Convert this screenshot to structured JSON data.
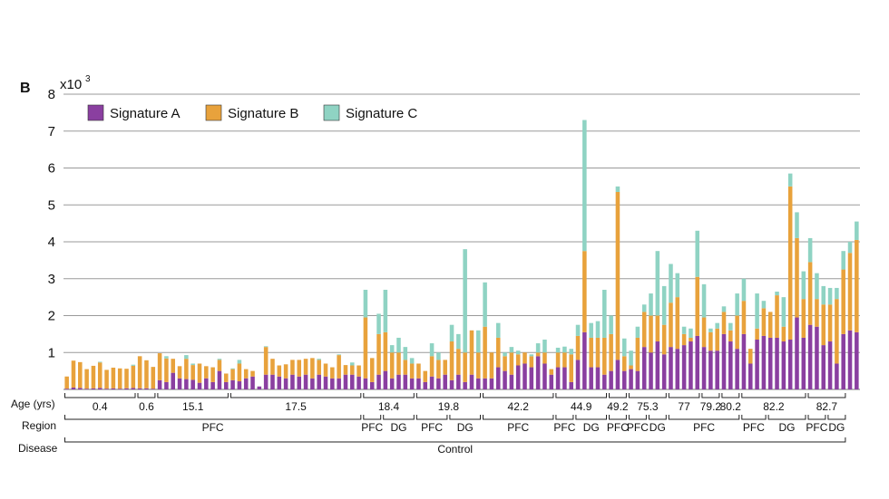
{
  "chart_data": {
    "type": "bar",
    "stacked": true,
    "panel_label": "B",
    "scale_label": "x10",
    "scale_exponent": "3",
    "ylim": [
      0,
      8
    ],
    "yticks": [
      1,
      2,
      3,
      4,
      5,
      6,
      7,
      8
    ],
    "grid": true,
    "legend_position": "top-left",
    "series": [
      {
        "name": "Signature A",
        "color": "#8a3fa0"
      },
      {
        "name": "Signature B",
        "color": "#e8a23c"
      },
      {
        "name": "Signature C",
        "color": "#8fd3c3"
      }
    ],
    "bars": [
      [
        0.02,
        0.33,
        0
      ],
      [
        0.05,
        0.73,
        0
      ],
      [
        0.04,
        0.7,
        0
      ],
      [
        0.02,
        0.53,
        0
      ],
      [
        0.03,
        0.61,
        0
      ],
      [
        0.04,
        0.69,
        0.02
      ],
      [
        0.02,
        0.51,
        0
      ],
      [
        0.03,
        0.56,
        0
      ],
      [
        0.02,
        0.55,
        0
      ],
      [
        0.03,
        0.53,
        0
      ],
      [
        0.04,
        0.6,
        0.03
      ],
      [
        0.03,
        0.87,
        0
      ],
      [
        0.03,
        0.76,
        0
      ],
      [
        0.02,
        0.59,
        0
      ],
      [
        0.25,
        0.73,
        0
      ],
      [
        0.2,
        0.64,
        0.06
      ],
      [
        0.45,
        0.38,
        0
      ],
      [
        0.3,
        0.33,
        0
      ],
      [
        0.28,
        0.55,
        0.1
      ],
      [
        0.26,
        0.4,
        0.04
      ],
      [
        0.18,
        0.52,
        0
      ],
      [
        0.3,
        0.33,
        0
      ],
      [
        0.2,
        0.4,
        0
      ],
      [
        0.5,
        0.3,
        0.03
      ],
      [
        0.2,
        0.23,
        0
      ],
      [
        0.25,
        0.3,
        0.02
      ],
      [
        0.22,
        0.48,
        0.1
      ],
      [
        0.3,
        0.25,
        0
      ],
      [
        0.35,
        0.15,
        0
      ],
      [
        0.08,
        0,
        0
      ],
      [
        0.4,
        0.75,
        0.02
      ],
      [
        0.4,
        0.43,
        0
      ],
      [
        0.35,
        0.3,
        0
      ],
      [
        0.3,
        0.38,
        0
      ],
      [
        0.4,
        0.4,
        0
      ],
      [
        0.35,
        0.45,
        0
      ],
      [
        0.4,
        0.43,
        0
      ],
      [
        0.3,
        0.55,
        0
      ],
      [
        0.4,
        0.4,
        0.03
      ],
      [
        0.35,
        0.35,
        0
      ],
      [
        0.3,
        0.3,
        0
      ],
      [
        0.3,
        0.63,
        0.02
      ],
      [
        0.4,
        0.26,
        0
      ],
      [
        0.4,
        0.25,
        0.08
      ],
      [
        0.35,
        0.3,
        0
      ],
      [
        0.3,
        1.65,
        0.75
      ],
      [
        0.2,
        0.65,
        0
      ],
      [
        0.4,
        1.1,
        0.55
      ],
      [
        0.5,
        1.05,
        1.15
      ],
      [
        0.3,
        0.7,
        0.2
      ],
      [
        0.4,
        0.6,
        0.4
      ],
      [
        0.4,
        0.4,
        0.35
      ],
      [
        0.3,
        0.4,
        0.15
      ],
      [
        0.3,
        0.4,
        0
      ],
      [
        0.2,
        0.3,
        0
      ],
      [
        0.35,
        0.55,
        0.35
      ],
      [
        0.3,
        0.5,
        0.2
      ],
      [
        0.4,
        0.4,
        0
      ],
      [
        0.25,
        1.05,
        0.45
      ],
      [
        0.4,
        0.7,
        0.4
      ],
      [
        0.2,
        0.8,
        2.8
      ],
      [
        0.4,
        1.2,
        0
      ],
      [
        0.3,
        0.7,
        0.6
      ],
      [
        0.3,
        1.4,
        1.2
      ],
      [
        0.3,
        0.7,
        0
      ],
      [
        0.6,
        0.8,
        0.4
      ],
      [
        0.5,
        0.4,
        0.1
      ],
      [
        0.4,
        0.6,
        0.15
      ],
      [
        0.65,
        0.3,
        0.1
      ],
      [
        0.7,
        0.3,
        0
      ],
      [
        0.6,
        0.3,
        0.05
      ],
      [
        0.9,
        0.1,
        0.25
      ],
      [
        0.7,
        0.3,
        0.35
      ],
      [
        0.4,
        0.15,
        0
      ],
      [
        0.6,
        0.4,
        0.13
      ],
      [
        0.6,
        0.4,
        0.16
      ],
      [
        0.2,
        0.75,
        0.15
      ],
      [
        0.8,
        0.65,
        0.3
      ],
      [
        1.55,
        2.2,
        3.55
      ],
      [
        0.6,
        0.8,
        0.4
      ],
      [
        0.6,
        0.8,
        0.45
      ],
      [
        0.4,
        1.0,
        1.3
      ],
      [
        0.5,
        1.0,
        0.5
      ],
      [
        0.8,
        4.55,
        0.15
      ],
      [
        0.5,
        0.4,
        0.48
      ],
      [
        0.55,
        0.1,
        0.4
      ],
      [
        0.5,
        0.9,
        0.3
      ],
      [
        1.15,
        0.95,
        0.2
      ],
      [
        1.0,
        1.0,
        0.6
      ],
      [
        1.3,
        0.7,
        1.75
      ],
      [
        0.95,
        0.8,
        1.05
      ],
      [
        1.15,
        1.2,
        1.05
      ],
      [
        1.1,
        1.4,
        0.65
      ],
      [
        1.2,
        0.3,
        0.2
      ],
      [
        1.3,
        0.1,
        0.25
      ],
      [
        1.45,
        1.6,
        1.25
      ],
      [
        1.15,
        0.8,
        0.9
      ],
      [
        1.05,
        0.5,
        0.1
      ],
      [
        1.05,
        0.6,
        0.15
      ],
      [
        1.5,
        0.6,
        0.15
      ],
      [
        1.3,
        0.3,
        0.2
      ],
      [
        1.1,
        0.9,
        0.6
      ],
      [
        1.5,
        0.9,
        0.6
      ],
      [
        0.7,
        0.4,
        0
      ],
      [
        1.35,
        0.3,
        0.95
      ],
      [
        1.45,
        0.75,
        0.2
      ],
      [
        1.4,
        0.7,
        0
      ],
      [
        1.4,
        1.15,
        0.1
      ],
      [
        1.3,
        0.4,
        0.8
      ],
      [
        1.35,
        4.15,
        0.35
      ],
      [
        1.95,
        2.15,
        0.7
      ],
      [
        1.4,
        1.05,
        0.75
      ],
      [
        1.75,
        1.7,
        0.65
      ],
      [
        1.7,
        0.75,
        0.7
      ],
      [
        1.2,
        1.1,
        0.5
      ],
      [
        1.3,
        1.0,
        0.45
      ],
      [
        0.7,
        1.75,
        0.3
      ],
      [
        1.5,
        1.75,
        0.5
      ],
      [
        1.6,
        2.1,
        0.3
      ],
      [
        1.55,
        2.5,
        0.5
      ]
    ],
    "age_label": "Age (yrs)",
    "region_label": "Region",
    "disease_label": "Disease",
    "age_groups": [
      {
        "label": "0.4",
        "start": 0,
        "end": 10
      },
      {
        "label": "0.6",
        "start": 11,
        "end": 13
      },
      {
        "label": "15.1",
        "start": 14,
        "end": 24
      },
      {
        "label": "17.5",
        "start": 25,
        "end": 44
      },
      {
        "label": "18.4",
        "start": 45,
        "end": 52
      },
      {
        "label": "19.8",
        "start": 53,
        "end": 62
      },
      {
        "label": "42.2",
        "start": 63,
        "end": 73
      },
      {
        "label": "44.9",
        "start": 74,
        "end": 81
      },
      {
        "label": "49.2",
        "start": 82,
        "end": 84
      },
      {
        "label": "75.3",
        "start": 85,
        "end": 90
      },
      {
        "label": "77",
        "start": 91,
        "end": 95
      },
      {
        "label": "79.2",
        "start": 96,
        "end": 98
      },
      {
        "label": "80.2",
        "start": 99,
        "end": 101
      },
      {
        "label": "82.2",
        "start": 102,
        "end": 111
      },
      {
        "label": "82.7",
        "start": 112,
        "end": 117
      }
    ],
    "region_groups": [
      {
        "label": "PFC",
        "start": 0,
        "end": 44
      },
      {
        "label": "PFC",
        "start": 45,
        "end": 47
      },
      {
        "label": "DG",
        "start": 48,
        "end": 52
      },
      {
        "label": "PFC",
        "start": 53,
        "end": 57
      },
      {
        "label": "DG",
        "start": 58,
        "end": 62
      },
      {
        "label": "PFC",
        "start": 63,
        "end": 73
      },
      {
        "label": "PFC",
        "start": 74,
        "end": 76
      },
      {
        "label": "DG",
        "start": 77,
        "end": 81
      },
      {
        "label": "PFC",
        "start": 82,
        "end": 84
      },
      {
        "label": "PFC",
        "start": 85,
        "end": 87
      },
      {
        "label": "DG",
        "start": 88,
        "end": 90
      },
      {
        "label": "PFC",
        "start": 91,
        "end": 101
      },
      {
        "label": "PFC",
        "start": 102,
        "end": 105
      },
      {
        "label": "DG",
        "start": 106,
        "end": 111
      },
      {
        "label": "PFC",
        "start": 112,
        "end": 114
      },
      {
        "label": "DG",
        "start": 115,
        "end": 117
      }
    ],
    "disease_groups": [
      {
        "label": "Control",
        "start": 0,
        "end": 117
      }
    ]
  }
}
